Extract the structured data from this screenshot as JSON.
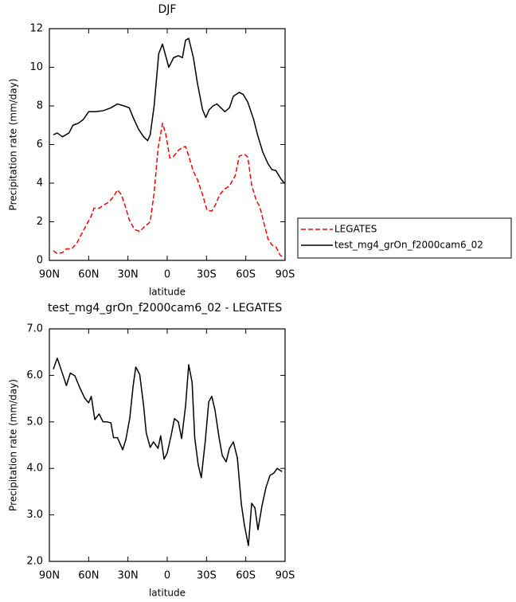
{
  "chart_data": [
    {
      "type": "line",
      "title": "DJF",
      "x_label": "latitude",
      "y_label": "Precipitation rate (mm/day)",
      "xlim": [
        90,
        -90
      ],
      "ylim": [
        0,
        12
      ],
      "xticks": [
        {
          "value": 90,
          "label": "90N"
        },
        {
          "value": 60,
          "label": "60N"
        },
        {
          "value": 30,
          "label": "30N"
        },
        0,
        {
          "value": -30,
          "label": "30S"
        },
        {
          "value": -60,
          "label": "60S"
        },
        {
          "value": -90,
          "label": "90S"
        }
      ],
      "yticks": [
        0,
        2,
        4,
        6,
        8,
        10,
        12
      ],
      "legend": "right",
      "series": [
        {
          "name": "LEGATES",
          "color": "#ff0000",
          "dashed": true,
          "x": [
            87,
            84,
            80,
            77,
            73,
            69,
            66,
            62,
            58,
            56,
            52,
            49,
            45,
            41,
            38,
            35,
            32,
            29,
            25,
            21,
            18,
            13,
            10,
            7,
            3.6,
            1,
            -2,
            -5,
            -8.5,
            -11.6,
            -14,
            -16,
            -20,
            -23,
            -27,
            -30.4,
            -34,
            -37,
            -40,
            -44,
            -47.5,
            -52,
            -55,
            -59,
            -61.5,
            -64.5,
            -68,
            -70.6,
            -74,
            -77,
            -80,
            -83,
            -86,
            -89
          ],
          "values": [
            0.5,
            0.35,
            0.4,
            0.6,
            0.6,
            0.9,
            1.3,
            1.8,
            2.3,
            2.7,
            2.7,
            2.85,
            3.0,
            3.3,
            3.65,
            3.4,
            2.8,
            2.1,
            1.6,
            1.5,
            1.7,
            2.0,
            3.5,
            5.8,
            7.1,
            6.5,
            5.3,
            5.4,
            5.7,
            5.85,
            5.9,
            5.5,
            4.6,
            4.2,
            3.4,
            2.6,
            2.55,
            2.9,
            3.4,
            3.7,
            3.85,
            4.4,
            5.4,
            5.5,
            5.35,
            3.9,
            3.1,
            2.8,
            1.9,
            1.1,
            0.8,
            0.7,
            0.3,
            0.1
          ]
        },
        {
          "name": "test_mg4_grOn_f2000cam6_02",
          "color": "#000000",
          "dashed": false,
          "x": [
            87,
            84,
            80,
            75,
            72,
            68,
            64,
            60,
            55,
            49,
            43,
            38,
            33,
            29,
            26,
            22,
            18,
            15,
            13,
            10,
            6.5,
            3.6,
            -1.2,
            -4.9,
            -8.5,
            -11.6,
            -14,
            -16.4,
            -20,
            -23,
            -27,
            -29.5,
            -32,
            -35,
            -38,
            -41,
            -44,
            -47.5,
            -50.5,
            -55,
            -58,
            -61.5,
            -66,
            -69,
            -73,
            -77,
            -80,
            -83,
            -87,
            -89.5
          ],
          "values": [
            6.5,
            6.6,
            6.4,
            6.6,
            7.0,
            7.1,
            7.3,
            7.7,
            7.7,
            7.75,
            7.9,
            8.1,
            8.0,
            7.9,
            7.4,
            6.8,
            6.4,
            6.2,
            6.5,
            8.0,
            10.7,
            11.2,
            10.0,
            10.5,
            10.6,
            10.5,
            11.4,
            11.5,
            10.5,
            9.2,
            7.8,
            7.4,
            7.8,
            8.0,
            8.1,
            7.9,
            7.7,
            7.9,
            8.5,
            8.7,
            8.6,
            8.2,
            7.3,
            6.5,
            5.6,
            5.0,
            4.7,
            4.65,
            4.2,
            4.0
          ]
        }
      ]
    },
    {
      "type": "line",
      "title": "test_mg4_grOn_f2000cam6_02 - LEGATES",
      "x_label": "latitude",
      "y_label": "Precipitation rate (mm/day)",
      "xlim": [
        90,
        -90
      ],
      "ylim": [
        2,
        7
      ],
      "xticks": [
        {
          "value": 90,
          "label": "90N"
        },
        {
          "value": 60,
          "label": "60N"
        },
        {
          "value": 30,
          "label": "30N"
        },
        0,
        {
          "value": -30,
          "label": "30S"
        },
        {
          "value": -60,
          "label": "60S"
        },
        {
          "value": -90,
          "label": "90S"
        }
      ],
      "yticks": [
        {
          "value": 2,
          "label": "2.0"
        },
        {
          "value": 3,
          "label": "3.0"
        },
        {
          "value": 4,
          "label": "4.0"
        },
        {
          "value": 5,
          "label": "5.0"
        },
        {
          "value": 6,
          "label": "6.0"
        },
        {
          "value": 7,
          "label": "7.0"
        }
      ],
      "color": "#000000",
      "x": [
        87,
        84,
        80,
        77,
        74,
        70.5,
        67,
        63,
        60,
        58,
        55.3,
        52,
        49,
        46,
        43,
        41,
        38,
        34,
        31.6,
        28.6,
        26,
        24,
        21,
        18,
        16,
        13,
        10.5,
        7,
        5,
        2.4,
        0,
        -3,
        -5.5,
        -8.5,
        -11,
        -14,
        -16.4,
        -19,
        -21,
        -23.7,
        -26,
        -29,
        -31.7,
        -34,
        -36.5,
        -39.6,
        -42,
        -45,
        -47.5,
        -50.5,
        -53.6,
        -56.6,
        -59,
        -62,
        -64.5,
        -67,
        -69.3,
        -72.4,
        -75.5,
        -78.5,
        -81.5,
        -84,
        -87.7
      ],
      "values": [
        6.13,
        6.37,
        6.04,
        5.78,
        6.05,
        5.99,
        5.75,
        5.51,
        5.41,
        5.55,
        5.05,
        5.17,
        5.0,
        5.0,
        4.98,
        4.66,
        4.66,
        4.4,
        4.62,
        5.08,
        5.78,
        6.18,
        6.02,
        5.34,
        4.76,
        4.45,
        4.57,
        4.43,
        4.7,
        4.2,
        4.33,
        4.71,
        5.07,
        5.0,
        4.64,
        5.34,
        6.23,
        5.85,
        4.66,
        4.07,
        3.8,
        4.57,
        5.43,
        5.55,
        5.25,
        4.66,
        4.28,
        4.14,
        4.43,
        4.57,
        4.22,
        3.23,
        2.77,
        2.34,
        3.25,
        3.15,
        2.68,
        3.2,
        3.6,
        3.85,
        3.9,
        4.0,
        3.93
      ]
    }
  ]
}
